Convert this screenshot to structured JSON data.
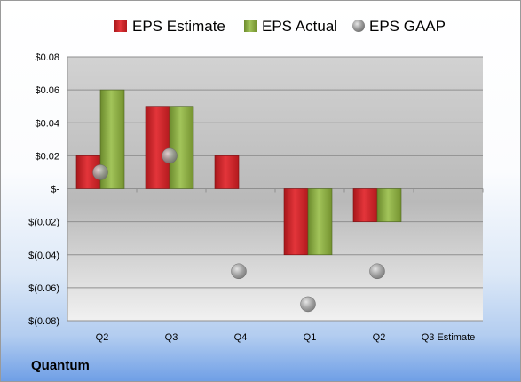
{
  "company": "Quantum",
  "colors": {
    "estimate": "#cc1f24",
    "actual": "#86a93d",
    "gaap": "#9a9a9a"
  },
  "chart_data": {
    "type": "bar",
    "categories": [
      "Q2",
      "Q3",
      "Q4",
      "Q1",
      "Q2",
      "Q3 Estimate"
    ],
    "series": [
      {
        "name": "EPS Estimate",
        "kind": "bar",
        "values": [
          0.02,
          0.05,
          0.02,
          -0.04,
          -0.02,
          null
        ]
      },
      {
        "name": "EPS Actual",
        "kind": "bar",
        "values": [
          0.06,
          0.05,
          null,
          -0.04,
          -0.02,
          null
        ]
      },
      {
        "name": "EPS GAAP",
        "kind": "point",
        "values": [
          0.01,
          0.02,
          -0.05,
          -0.07,
          -0.05,
          null
        ]
      }
    ],
    "yticks": [
      "$0.08",
      "$0.06",
      "$0.04",
      "$0.02",
      "$-",
      "$(0.02)",
      "$(0.04)",
      "$(0.06)",
      "$(0.08)"
    ],
    "ylim": [
      -0.08,
      0.08
    ],
    "grid": true,
    "legend": "top"
  }
}
